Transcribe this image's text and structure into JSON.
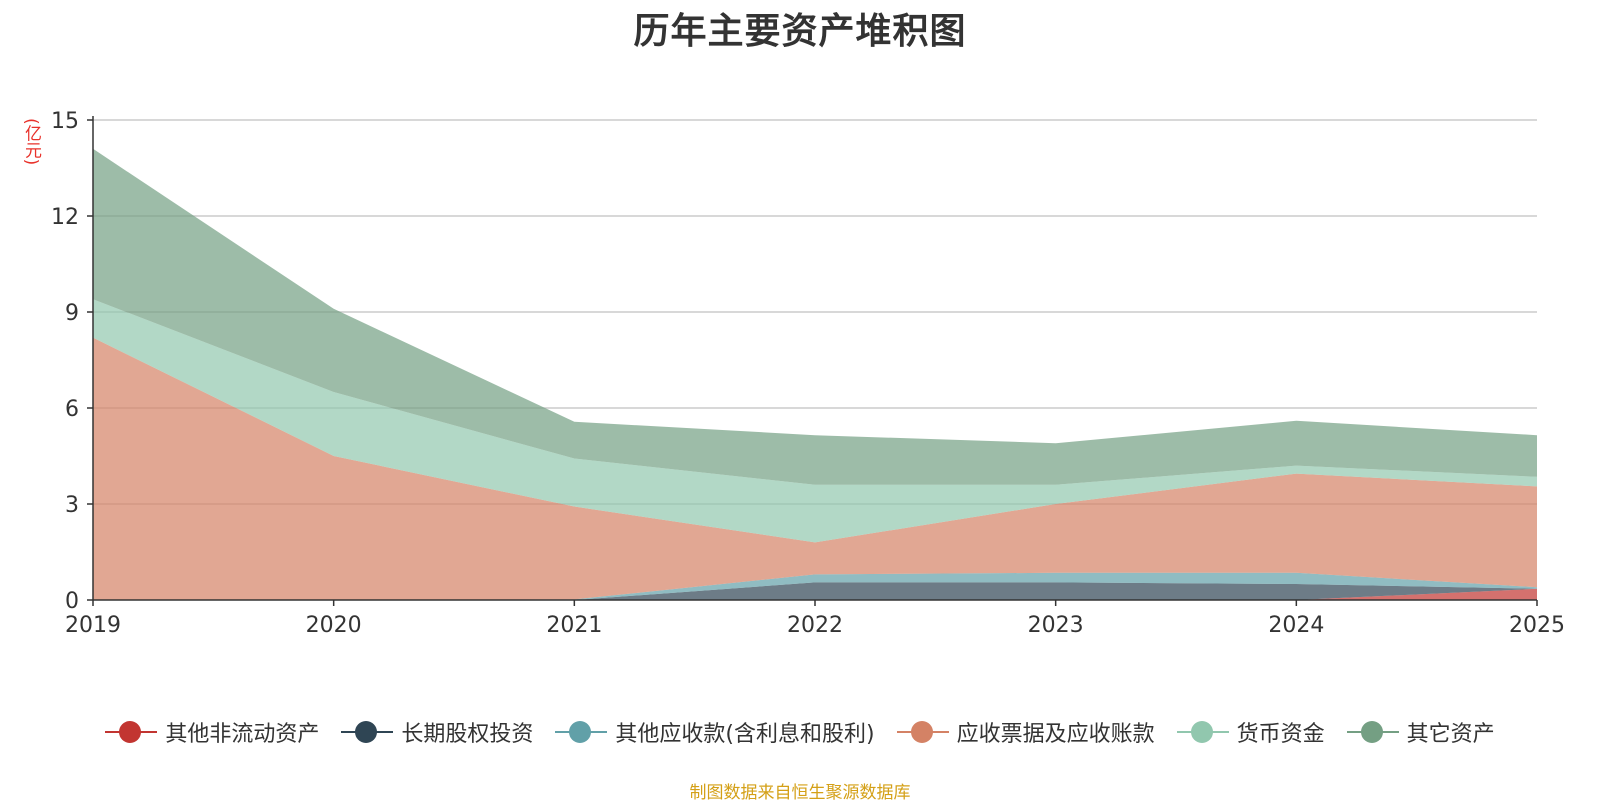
{
  "chart_data": {
    "type": "area",
    "title": "历年主要资产堆积图",
    "unit_label": "(亿元)",
    "x": [
      "2019",
      "2020",
      "2021",
      "2022",
      "2023",
      "2024",
      "2025"
    ],
    "ylim": [
      0,
      15
    ],
    "yticks": [
      "0",
      "3",
      "6",
      "9",
      "12",
      "15"
    ],
    "stacked": true,
    "grid": true,
    "legend_position": "bottom",
    "series": [
      {
        "name": "其他非流动资产",
        "color": "#c23531",
        "values": [
          0,
          0,
          0,
          0,
          0,
          0,
          0.35
        ]
      },
      {
        "name": "长期股权投资",
        "color": "#2f4554",
        "values": [
          0,
          0,
          0,
          0.55,
          0.55,
          0.5,
          0
        ]
      },
      {
        "name": "其他应收款(含利息和股利)",
        "color": "#61a0a8",
        "values": [
          0,
          0,
          0.02,
          0.25,
          0.3,
          0.35,
          0.05
        ]
      },
      {
        "name": "应收票据及应收账款",
        "color": "#d48265",
        "values": [
          8.2,
          4.5,
          2.9,
          1.0,
          2.15,
          3.1,
          3.15
        ]
      },
      {
        "name": "货币资金",
        "color": "#91c7ae",
        "values": [
          1.2,
          2.0,
          1.5,
          1.8,
          0.6,
          0.25,
          0.3
        ]
      },
      {
        "name": "其它资产",
        "color": "#749f83",
        "values": [
          4.7,
          2.6,
          1.15,
          1.55,
          1.3,
          1.4,
          1.3
        ]
      }
    ]
  },
  "source_note": "制图数据来自恒生聚源数据库"
}
